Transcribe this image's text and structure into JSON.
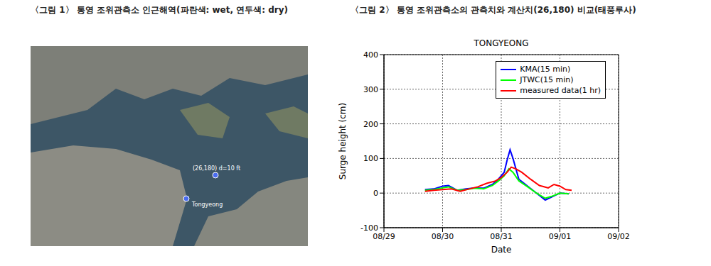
{
  "figure1": {
    "caption": "〈그림 1〉 통영 조위관측소 인근해역(파란색: wet, 연두색: dry)",
    "markers": [
      {
        "label": "(26,180) d=10 ft"
      },
      {
        "label": "Tongyeong"
      }
    ]
  },
  "chart_data": {
    "type": "line",
    "caption": "〈그림 2〉 통영 조위관측소의 관측치와 계산치(26,180) 비교(태풍루사)",
    "title": "TONGYEONG",
    "x_label": "Date",
    "y_label": "Surge height (cm)",
    "xlim": [
      0,
      4
    ],
    "xticks": [
      {
        "value": 0,
        "label": "08/29"
      },
      {
        "value": 1,
        "label": "08/30"
      },
      {
        "value": 2,
        "label": "08/31"
      },
      {
        "value": 3,
        "label": "09/01"
      },
      {
        "value": 4,
        "label": "09/02"
      }
    ],
    "ylim": [
      -100,
      400
    ],
    "yticks": [
      -100,
      0,
      100,
      200,
      300,
      400
    ],
    "grid": true,
    "legend": "upper right",
    "series": [
      {
        "name": "KMA(15 min)",
        "color": "#0000ff",
        "x": [
          0.7,
          0.85,
          1.0,
          1.1,
          1.25,
          1.4,
          1.55,
          1.7,
          1.85,
          1.95,
          2.05,
          2.1,
          2.15,
          2.2,
          2.3,
          2.45,
          2.6,
          2.75,
          2.85,
          3.0,
          3.15
        ],
        "values": [
          10,
          12,
          20,
          22,
          8,
          12,
          15,
          14,
          25,
          40,
          60,
          95,
          125,
          100,
          40,
          20,
          0,
          -20,
          -12,
          0,
          -2
        ]
      },
      {
        "name": "JTWC(15 min)",
        "color": "#00ff00",
        "x": [
          0.7,
          0.85,
          1.0,
          1.1,
          1.25,
          1.4,
          1.55,
          1.7,
          1.85,
          1.95,
          2.05,
          2.13,
          2.2,
          2.3,
          2.45,
          2.6,
          2.75,
          2.85,
          3.0,
          3.15
        ],
        "values": [
          8,
          10,
          15,
          18,
          8,
          10,
          14,
          12,
          22,
          35,
          50,
          70,
          60,
          35,
          18,
          0,
          -15,
          -10,
          0,
          -2
        ]
      },
      {
        "name": "measured data(1 hr)",
        "color": "#ff0000",
        "x": [
          0.7,
          0.85,
          1.0,
          1.15,
          1.3,
          1.45,
          1.6,
          1.75,
          1.9,
          2.0,
          2.1,
          2.17,
          2.25,
          2.35,
          2.5,
          2.65,
          2.8,
          2.9,
          3.0,
          3.1,
          3.2
        ],
        "values": [
          5,
          8,
          10,
          12,
          5,
          12,
          18,
          28,
          35,
          45,
          60,
          75,
          70,
          60,
          40,
          22,
          15,
          25,
          20,
          10,
          8
        ]
      }
    ]
  }
}
